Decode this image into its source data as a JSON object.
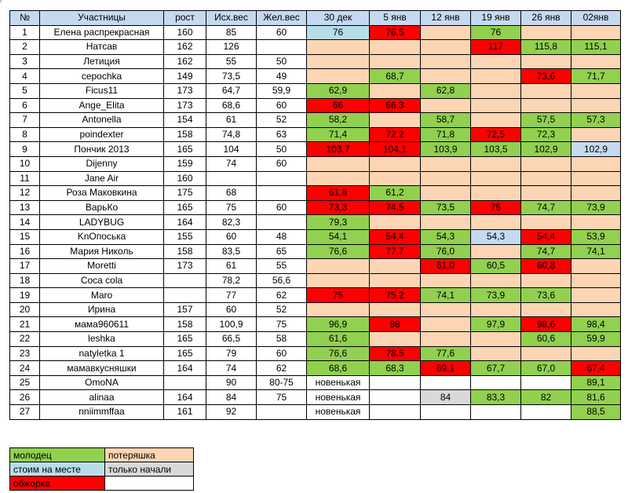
{
  "columns": [
    "№",
    "Участницы",
    "рост",
    "Исх.вес",
    "Жел.вес",
    "30 дек",
    "5 янв",
    "12 янв",
    "19 янв",
    "26 янв",
    "02янв"
  ],
  "rows": [
    {
      "n": "1",
      "name": "Елена распрекрасная",
      "h": "160",
      "start": "85",
      "goal": "60",
      "w": [
        [
          "76",
          "b"
        ],
        [
          "76,5",
          "r"
        ],
        [
          "",
          "p"
        ],
        [
          "76",
          "g"
        ],
        [
          "",
          "p"
        ],
        [
          "",
          "p"
        ]
      ]
    },
    {
      "n": "2",
      "name": "Натсав",
      "h": "162",
      "start": "126",
      "goal": "",
      "w": [
        [
          "",
          "p"
        ],
        [
          "",
          "p"
        ],
        [
          "",
          "p"
        ],
        [
          "117",
          "r"
        ],
        [
          "115,8",
          "g"
        ],
        [
          "115,1",
          "g"
        ]
      ]
    },
    {
      "n": "3",
      "name": "Летиция",
      "h": "162",
      "start": "55",
      "goal": "50",
      "w": [
        [
          "",
          "p"
        ],
        [
          "",
          "p"
        ],
        [
          "",
          "p"
        ],
        [
          "",
          "p"
        ],
        [
          "",
          "p"
        ],
        [
          "",
          "p"
        ]
      ]
    },
    {
      "n": "4",
      "name": "cepochka",
      "h": "149",
      "start": "73,5",
      "goal": "49",
      "w": [
        [
          "",
          "p"
        ],
        [
          "68,7",
          "g"
        ],
        [
          "",
          "p"
        ],
        [
          "",
          "p"
        ],
        [
          "73,6",
          "r"
        ],
        [
          "71,7",
          "g"
        ]
      ]
    },
    {
      "n": "5",
      "name": "Ficus11",
      "h": "173",
      "start": "64,7",
      "goal": "59,9",
      "w": [
        [
          "62,9",
          "g"
        ],
        [
          "",
          "p"
        ],
        [
          "62,8",
          "g"
        ],
        [
          "",
          "p"
        ],
        [
          "",
          "p"
        ],
        [
          "",
          "p"
        ]
      ]
    },
    {
      "n": "6",
      "name": "Ange_Elita",
      "h": "173",
      "start": "68,6",
      "goal": "60",
      "w": [
        [
          "66",
          "r"
        ],
        [
          "66,3",
          "r"
        ],
        [
          "",
          "p"
        ],
        [
          "",
          "p"
        ],
        [
          "",
          "p"
        ],
        [
          "",
          "p"
        ]
      ]
    },
    {
      "n": "7",
      "name": "Antonella",
      "h": "154",
      "start": "61",
      "goal": "52",
      "w": [
        [
          "58,2",
          "g"
        ],
        [
          "",
          "p"
        ],
        [
          "58,7",
          "g"
        ],
        [
          "",
          "p"
        ],
        [
          "57,5",
          "g"
        ],
        [
          "57,3",
          "g"
        ]
      ]
    },
    {
      "n": "8",
      "name": "poindexter",
      "h": "158",
      "start": "74,8",
      "goal": "63",
      "w": [
        [
          "71,4",
          "g"
        ],
        [
          "72,2",
          "r"
        ],
        [
          "71,8",
          "g"
        ],
        [
          "72,5",
          "r"
        ],
        [
          "72,3",
          "g"
        ],
        [
          "",
          "p"
        ]
      ]
    },
    {
      "n": "9",
      "name": "Пончик 2013",
      "h": "165",
      "start": "104",
      "goal": "50",
      "w": [
        [
          "103,7",
          "r"
        ],
        [
          "104,1",
          "r"
        ],
        [
          "103,9",
          "g"
        ],
        [
          "103,5",
          "g"
        ],
        [
          "102,9",
          "g"
        ],
        [
          "102,9",
          "s"
        ]
      ]
    },
    {
      "n": "10",
      "name": "Dijenny",
      "h": "159",
      "start": "74",
      "goal": "60",
      "w": [
        [
          "",
          "p"
        ],
        [
          "",
          "p"
        ],
        [
          "",
          "p"
        ],
        [
          "",
          "p"
        ],
        [
          "",
          "p"
        ],
        [
          "",
          "p"
        ]
      ]
    },
    {
      "n": "11",
      "name": "Jane Air",
      "h": "160",
      "start": "",
      "goal": "",
      "w": [
        [
          "",
          "p"
        ],
        [
          "",
          "p"
        ],
        [
          "",
          "p"
        ],
        [
          "",
          "p"
        ],
        [
          "",
          "p"
        ],
        [
          "",
          "p"
        ]
      ]
    },
    {
      "n": "12",
      "name": "Роза Маковкина",
      "h": "175",
      "start": "68",
      "goal": "",
      "w": [
        [
          "61,8",
          "r"
        ],
        [
          "61,2",
          "g"
        ],
        [
          "",
          "p"
        ],
        [
          "",
          "p"
        ],
        [
          "",
          "p"
        ],
        [
          "",
          "p"
        ]
      ]
    },
    {
      "n": "13",
      "name": "ВарьКо",
      "h": "165",
      "start": "75",
      "goal": "60",
      "w": [
        [
          "73,3",
          "r"
        ],
        [
          "74,5",
          "r"
        ],
        [
          "73,5",
          "g"
        ],
        [
          "75",
          "r"
        ],
        [
          "74,7",
          "g"
        ],
        [
          "73,9",
          "g"
        ]
      ]
    },
    {
      "n": "14",
      "name": "LADYBUG",
      "h": "164",
      "start": "82,3",
      "goal": "",
      "w": [
        [
          "79,3",
          "g"
        ],
        [
          "",
          "p"
        ],
        [
          "",
          "p"
        ],
        [
          "",
          "p"
        ],
        [
          "",
          "p"
        ],
        [
          "",
          "p"
        ]
      ]
    },
    {
      "n": "15",
      "name": "KnОпоська",
      "h": "155",
      "start": "60",
      "goal": "48",
      "w": [
        [
          "54,1",
          "g"
        ],
        [
          "54,4",
          "r"
        ],
        [
          "54,3",
          "g"
        ],
        [
          "54,3",
          "s"
        ],
        [
          "54,4",
          "r"
        ],
        [
          "53,9",
          "g"
        ]
      ]
    },
    {
      "n": "16",
      "name": "Мария Николь",
      "h": "158",
      "start": "83,5",
      "goal": "65",
      "w": [
        [
          "76,6",
          "g"
        ],
        [
          "77,7",
          "r"
        ],
        [
          "76,0",
          "g"
        ],
        [
          "",
          "p"
        ],
        [
          "74,7",
          "g"
        ],
        [
          "74,1",
          "g"
        ]
      ]
    },
    {
      "n": "17",
      "name": "Moretti",
      "h": "173",
      "start": "61",
      "goal": "55",
      "w": [
        [
          "",
          "p"
        ],
        [
          "",
          "p"
        ],
        [
          "61,0",
          "r"
        ],
        [
          "60,5",
          "g"
        ],
        [
          "60,8",
          "r"
        ],
        [
          "",
          "p"
        ]
      ]
    },
    {
      "n": "18",
      "name": "Coca cola",
      "h": "",
      "start": "78,2",
      "goal": "56,6",
      "w": [
        [
          "",
          "p"
        ],
        [
          "",
          "p"
        ],
        [
          "",
          "p"
        ],
        [
          "",
          "p"
        ],
        [
          "",
          "p"
        ],
        [
          "",
          "p"
        ]
      ]
    },
    {
      "n": "19",
      "name": "Maro",
      "h": "",
      "start": "77",
      "goal": "62",
      "w": [
        [
          "75",
          "r"
        ],
        [
          "75,2",
          "r"
        ],
        [
          "74,1",
          "g"
        ],
        [
          "73,9",
          "g"
        ],
        [
          "73,6",
          "g"
        ],
        [
          "",
          "p"
        ]
      ]
    },
    {
      "n": "20",
      "name": "Ирина",
      "h": "157",
      "start": "60",
      "goal": "52",
      "w": [
        [
          "",
          "p"
        ],
        [
          "",
          "p"
        ],
        [
          "",
          "p"
        ],
        [
          "",
          "p"
        ],
        [
          "",
          "p"
        ],
        [
          "",
          "p"
        ]
      ]
    },
    {
      "n": "21",
      "name": "мама960611",
      "h": "158",
      "start": "100,9",
      "goal": "75",
      "w": [
        [
          "96,9",
          "g"
        ],
        [
          "98",
          "r"
        ],
        [
          "",
          "p"
        ],
        [
          "97,9",
          "g"
        ],
        [
          "98,6",
          "r"
        ],
        [
          "98,4",
          "g"
        ]
      ]
    },
    {
      "n": "22",
      "name": "leshka",
      "h": "165",
      "start": "66,5",
      "goal": "58",
      "w": [
        [
          "61,6",
          "g"
        ],
        [
          "",
          "p"
        ],
        [
          "",
          "p"
        ],
        [
          "",
          "p"
        ],
        [
          "60,6",
          "g"
        ],
        [
          "59,9",
          "g"
        ]
      ]
    },
    {
      "n": "23",
      "name": "natyletka 1",
      "h": "165",
      "start": "79",
      "goal": "60",
      "w": [
        [
          "76,6",
          "g"
        ],
        [
          "78,5",
          "r"
        ],
        [
          "77,6",
          "g"
        ],
        [
          "",
          "p"
        ],
        [
          "",
          "p"
        ],
        [
          "",
          "p"
        ]
      ]
    },
    {
      "n": "24",
      "name": "мамавкусняшки",
      "h": "164",
      "start": "74",
      "goal": "62",
      "w": [
        [
          "68,6",
          "g"
        ],
        [
          "68,3",
          "g"
        ],
        [
          "69,1",
          "r"
        ],
        [
          "67,7",
          "g"
        ],
        [
          "67,0",
          "g"
        ],
        [
          "67,4",
          "r"
        ]
      ]
    },
    {
      "n": "25",
      "name": "OmoNA",
      "h": "",
      "start": "90",
      "goal": "80-75",
      "w": [
        [
          "новенькая",
          "w"
        ],
        [
          "",
          "w"
        ],
        [
          "",
          "w"
        ],
        [
          "",
          "w"
        ],
        [
          "",
          "w"
        ],
        [
          "89,1",
          "g"
        ]
      ]
    },
    {
      "n": "26",
      "name": "alinaa",
      "h": "164",
      "start": "84",
      "goal": "75",
      "w": [
        [
          "новенькая",
          "w"
        ],
        [
          "",
          "w"
        ],
        [
          "84",
          "gr"
        ],
        [
          "83,3",
          "g"
        ],
        [
          "82",
          "g"
        ],
        [
          "81,6",
          "g"
        ]
      ]
    },
    {
      "n": "27",
      "name": "nniimmffaa",
      "h": "161",
      "start": "92",
      "goal": "",
      "w": [
        [
          "новенькая",
          "w"
        ],
        [
          "",
          "w"
        ],
        [
          "",
          "w"
        ],
        [
          "",
          "w"
        ],
        [
          "",
          "w"
        ],
        [
          "88,5",
          "g"
        ]
      ]
    }
  ],
  "legend": {
    "good": "молодец",
    "lost": "потеряшка",
    "same": "стоим на месте",
    "started": "только начали",
    "overeat": "обжорка",
    "empty": ""
  },
  "colors": {
    "green": "#92d050",
    "peach": "#fcd5b4",
    "red": "#ff0000",
    "light_blue": "#b7dee8",
    "header_blue": "#c5d9f1",
    "gray": "#d9d9d9"
  }
}
